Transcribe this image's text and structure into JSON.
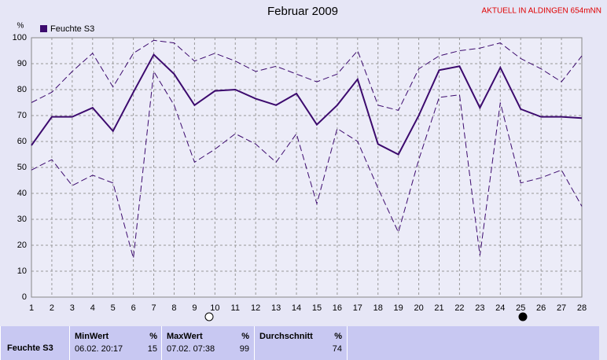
{
  "chart_data": {
    "type": "line",
    "title": "Februar 2009",
    "annotation": "AKTUELL IN ALDINGEN 654mNN",
    "y_label": "%",
    "x": [
      1,
      2,
      3,
      4,
      5,
      6,
      7,
      8,
      9,
      10,
      11,
      12,
      13,
      14,
      15,
      16,
      17,
      18,
      19,
      20,
      21,
      22,
      23,
      24,
      25,
      26,
      27,
      28
    ],
    "xlim": [
      1,
      28
    ],
    "xticks": [
      1,
      2,
      3,
      4,
      5,
      6,
      7,
      8,
      9,
      10,
      11,
      12,
      13,
      14,
      15,
      16,
      17,
      18,
      19,
      20,
      21,
      22,
      23,
      24,
      25,
      26,
      27,
      28
    ],
    "ylim": [
      0,
      100
    ],
    "yticks": [
      0,
      10,
      20,
      30,
      40,
      50,
      60,
      70,
      80,
      90,
      100
    ],
    "grid": true,
    "series": [
      {
        "name": "Feuchte S3",
        "color": "#3c0a6e",
        "style": "solid",
        "values": [
          58.5,
          69.5,
          69.5,
          73,
          64,
          79,
          93.5,
          86,
          74,
          79.5,
          80,
          76.5,
          74,
          78.5,
          66.5,
          74,
          84,
          59,
          55,
          70,
          87.5,
          89,
          73,
          88.5,
          72.5,
          69.5,
          69.5,
          69
        ]
      },
      {
        "color": "#3c0a6e",
        "style": "dashed",
        "values": [
          75,
          79,
          87,
          94,
          81,
          94,
          99,
          98,
          91,
          94,
          91,
          87,
          89,
          86,
          83,
          86,
          95,
          74,
          72,
          88,
          93,
          95,
          96,
          98,
          92,
          88,
          83,
          93
        ]
      },
      {
        "color": "#3c0a6e",
        "style": "dashed",
        "values": [
          49,
          53,
          43,
          47,
          44,
          15,
          87,
          74,
          52,
          57,
          63,
          59,
          52,
          63,
          36,
          65,
          60,
          42,
          25,
          53,
          77,
          78,
          16,
          75,
          44,
          46,
          49,
          35
        ]
      }
    ]
  },
  "summary": {
    "sensor": "Feuchte S3",
    "columns": [
      {
        "label": "MinWert",
        "unit": "%",
        "time": "06.02. 20:17",
        "value": 15
      },
      {
        "label": "MaxWert",
        "unit": "%",
        "time": "07.02. 07:38",
        "value": 99
      },
      {
        "label": "Durchschnitt",
        "unit": "%",
        "value": 74
      }
    ]
  }
}
